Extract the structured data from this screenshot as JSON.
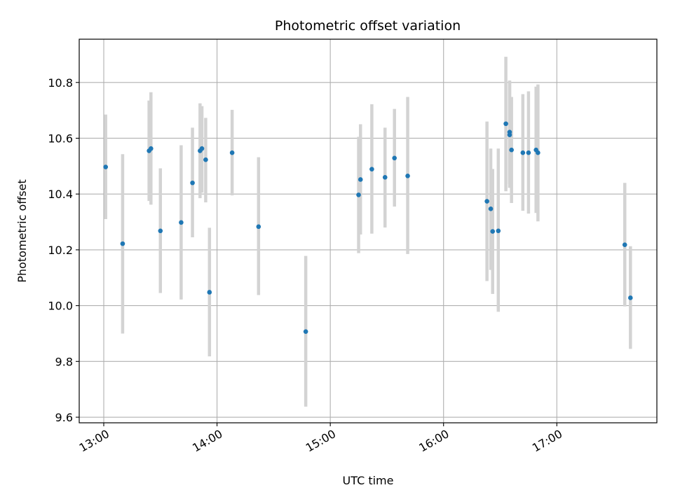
{
  "chart_data": {
    "type": "scatter",
    "title": "Photometric offset variation",
    "xlabel": "UTC time",
    "ylabel": "Photometric offset",
    "grid": true,
    "xlim": [
      "12:47",
      "17:53"
    ],
    "ylim": [
      9.58,
      10.955
    ],
    "xticks": [
      "13:00",
      "14:00",
      "15:00",
      "16:00",
      "17:00"
    ],
    "yticks": [
      "9.6",
      "9.8",
      "10.0",
      "10.2",
      "10.4",
      "10.6",
      "10.8"
    ],
    "colors": {
      "point": "#1f77b4",
      "errorbar": "#d3d3d3",
      "grid": "#b0b0b0"
    },
    "points": [
      {
        "x": "13:01",
        "y": 10.497,
        "ylow": 10.31,
        "yhigh": 10.685
      },
      {
        "x": "13:10",
        "y": 10.222,
        "ylow": 9.9,
        "yhigh": 10.543
      },
      {
        "x": "13:24",
        "y": 10.555,
        "ylow": 10.375,
        "yhigh": 10.735
      },
      {
        "x": "13:25",
        "y": 10.563,
        "ylow": 10.362,
        "yhigh": 10.765
      },
      {
        "x": "13:30",
        "y": 10.268,
        "ylow": 10.045,
        "yhigh": 10.492
      },
      {
        "x": "13:41",
        "y": 10.298,
        "ylow": 10.022,
        "yhigh": 10.575
      },
      {
        "x": "13:47",
        "y": 10.44,
        "ylow": 10.245,
        "yhigh": 10.638
      },
      {
        "x": "13:51",
        "y": 10.555,
        "ylow": 10.385,
        "yhigh": 10.725
      },
      {
        "x": "13:52",
        "y": 10.563,
        "ylow": 10.405,
        "yhigh": 10.715
      },
      {
        "x": "13:54",
        "y": 10.523,
        "ylow": 10.37,
        "yhigh": 10.673
      },
      {
        "x": "13:56",
        "y": 10.048,
        "ylow": 9.818,
        "yhigh": 10.279
      },
      {
        "x": "14:08",
        "y": 10.548,
        "ylow": 10.395,
        "yhigh": 10.702
      },
      {
        "x": "14:22",
        "y": 10.283,
        "ylow": 10.038,
        "yhigh": 10.532
      },
      {
        "x": "14:47",
        "y": 9.907,
        "ylow": 9.638,
        "yhigh": 10.178
      },
      {
        "x": "15:15",
        "y": 10.397,
        "ylow": 10.188,
        "yhigh": 10.605
      },
      {
        "x": "15:16",
        "y": 10.452,
        "ylow": 10.255,
        "yhigh": 10.65
      },
      {
        "x": "15:22",
        "y": 10.489,
        "ylow": 10.258,
        "yhigh": 10.722
      },
      {
        "x": "15:29",
        "y": 10.46,
        "ylow": 10.28,
        "yhigh": 10.638
      },
      {
        "x": "15:34",
        "y": 10.529,
        "ylow": 10.355,
        "yhigh": 10.705
      },
      {
        "x": "15:41",
        "y": 10.465,
        "ylow": 10.185,
        "yhigh": 10.748
      },
      {
        "x": "16:23",
        "y": 10.374,
        "ylow": 10.088,
        "yhigh": 10.66
      },
      {
        "x": "16:25",
        "y": 10.347,
        "ylow": 10.128,
        "yhigh": 10.563
      },
      {
        "x": "16:26",
        "y": 10.266,
        "ylow": 10.042,
        "yhigh": 10.49
      },
      {
        "x": "16:29",
        "y": 10.268,
        "ylow": 9.978,
        "yhigh": 10.563
      },
      {
        "x": "16:33",
        "y": 10.652,
        "ylow": 10.41,
        "yhigh": 10.892
      },
      {
        "x": "16:35",
        "y": 10.622,
        "ylow": 10.435,
        "yhigh": 10.807
      },
      {
        "x": "16:35",
        "y": 10.612,
        "ylow": 10.422,
        "yhigh": 10.803
      },
      {
        "x": "16:36",
        "y": 10.558,
        "ylow": 10.368,
        "yhigh": 10.748
      },
      {
        "x": "16:42",
        "y": 10.548,
        "ylow": 10.34,
        "yhigh": 10.758
      },
      {
        "x": "16:45",
        "y": 10.548,
        "ylow": 10.33,
        "yhigh": 10.768
      },
      {
        "x": "16:49",
        "y": 10.558,
        "ylow": 10.332,
        "yhigh": 10.785
      },
      {
        "x": "16:50",
        "y": 10.548,
        "ylow": 10.302,
        "yhigh": 10.793
      },
      {
        "x": "17:36",
        "y": 10.218,
        "ylow": 9.997,
        "yhigh": 10.44
      },
      {
        "x": "17:39",
        "y": 10.028,
        "ylow": 9.845,
        "yhigh": 10.213
      }
    ]
  }
}
